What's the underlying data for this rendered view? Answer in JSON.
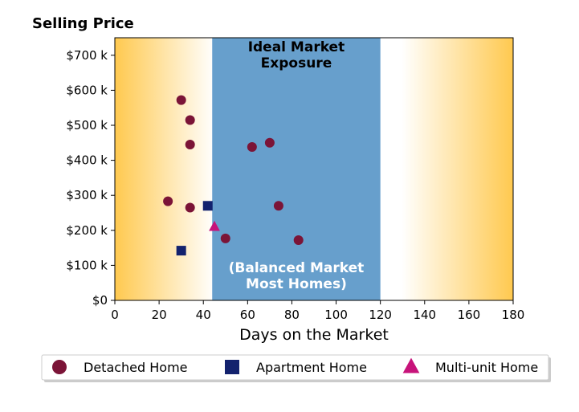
{
  "chart_data": {
    "type": "scatter",
    "title": "Selling Price",
    "xlabel": "Days on the Market",
    "ylabel": "",
    "xlim": [
      0,
      180
    ],
    "ylim": [
      0,
      750000
    ],
    "x_ticks": [
      0,
      20,
      40,
      60,
      80,
      100,
      120,
      140,
      160,
      180
    ],
    "x_tick_labels": [
      "0",
      "20",
      "40",
      "60",
      "80",
      "100",
      "120",
      "140",
      "160",
      "180"
    ],
    "y_ticks": [
      0,
      100000,
      200000,
      300000,
      400000,
      500000,
      600000,
      700000
    ],
    "y_tick_labels": [
      "$0",
      "$100 k",
      "$200 k",
      "$300 k",
      "$400 k",
      "$500 k",
      "$600 k",
      "$700 k"
    ],
    "grid": false,
    "legend_placement": "bottom",
    "bands": [
      {
        "x_start": 44,
        "x_end": 120,
        "color": "#679fcc",
        "label_top": [
          "Ideal Market",
          "Exposure"
        ],
        "label_bottom": [
          "(Balanced Market",
          "Most Homes)"
        ]
      }
    ],
    "background_gradient": {
      "edge_color": "#ffc94f",
      "center_color": "#ffffff"
    },
    "series": [
      {
        "name": "Detached Home",
        "marker": "circle",
        "color": "#7b1437",
        "points": [
          {
            "x": 30,
            "y": 572000
          },
          {
            "x": 34,
            "y": 515000
          },
          {
            "x": 34,
            "y": 445000
          },
          {
            "x": 24,
            "y": 283000
          },
          {
            "x": 34,
            "y": 265000
          },
          {
            "x": 50,
            "y": 177000
          },
          {
            "x": 62,
            "y": 438000
          },
          {
            "x": 70,
            "y": 450000
          },
          {
            "x": 74,
            "y": 270000
          },
          {
            "x": 83,
            "y": 172000
          }
        ]
      },
      {
        "name": "Apartment Home",
        "marker": "square",
        "color": "#13226e",
        "points": [
          {
            "x": 42,
            "y": 270000
          },
          {
            "x": 30,
            "y": 142000
          }
        ]
      },
      {
        "name": "Multi-unit Home",
        "marker": "triangle",
        "color": "#c7137a",
        "points": [
          {
            "x": 45,
            "y": 210000
          }
        ]
      }
    ]
  }
}
